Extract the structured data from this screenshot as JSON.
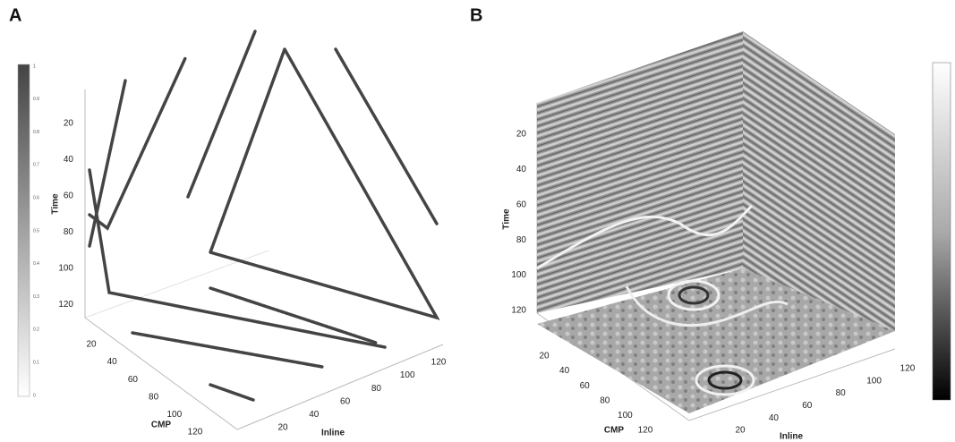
{
  "panels": [
    {
      "label": "A",
      "time": {
        "title": "Time",
        "ticks": [
          20,
          40,
          60,
          80,
          100,
          120
        ]
      },
      "cmp": {
        "title": "CMP",
        "ticks": [
          20,
          40,
          60,
          80,
          100,
          120
        ]
      },
      "inline": {
        "title": "Inline",
        "ticks": [
          20,
          40,
          60,
          80,
          100,
          120
        ]
      },
      "colorbar": {
        "ticks": [
          0,
          0.1,
          0.2,
          0.3,
          0.4,
          0.5,
          0.6,
          0.7,
          0.8,
          0.9,
          1
        ]
      }
    },
    {
      "label": "B",
      "time": {
        "title": "Time",
        "ticks": [
          20,
          40,
          60,
          80,
          100,
          120
        ]
      },
      "cmp": {
        "title": "CMP",
        "ticks": [
          20,
          40,
          60,
          80,
          100,
          120
        ]
      },
      "inline": {
        "title": "Inline",
        "ticks": [
          20,
          40,
          60,
          80,
          100,
          120
        ]
      }
    }
  ]
}
